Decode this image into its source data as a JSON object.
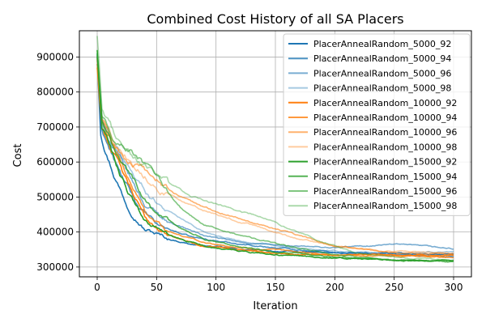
{
  "chart_data": {
    "type": "line",
    "title": "Combined Cost History of all SA Placers",
    "xlabel": "Iteration",
    "ylabel": "Cost",
    "xlim": [
      -15,
      315
    ],
    "ylim": [
      272000,
      975000
    ],
    "xticks": [
      0,
      50,
      100,
      150,
      200,
      250,
      300
    ],
    "yticks": [
      300000,
      400000,
      500000,
      600000,
      700000,
      800000,
      900000
    ],
    "grid": true,
    "legend_position": "top-right",
    "series": [
      {
        "name": "PlacerAnnealRandom_5000_92",
        "color": "#1f77b4",
        "opacity": 1.0,
        "anchors": [
          [
            0,
            900000
          ],
          [
            3,
            690000
          ],
          [
            8,
            630000
          ],
          [
            15,
            560000
          ],
          [
            25,
            480000
          ],
          [
            40,
            410000
          ],
          [
            60,
            380000
          ],
          [
            80,
            365000
          ],
          [
            120,
            350000
          ],
          [
            150,
            345000
          ],
          [
            200,
            340000
          ],
          [
            250,
            338000
          ],
          [
            300,
            336000
          ]
        ]
      },
      {
        "name": "PlacerAnnealRandom_5000_94",
        "color": "#1f77b4",
        "opacity": 0.8,
        "anchors": [
          [
            0,
            910000
          ],
          [
            3,
            700000
          ],
          [
            10,
            640000
          ],
          [
            20,
            560000
          ],
          [
            35,
            470000
          ],
          [
            50,
            420000
          ],
          [
            80,
            385000
          ],
          [
            110,
            370000
          ],
          [
            150,
            355000
          ],
          [
            200,
            343000
          ],
          [
            250,
            335000
          ],
          [
            300,
            330000
          ]
        ]
      },
      {
        "name": "PlacerAnnealRandom_5000_96",
        "color": "#1f77b4",
        "opacity": 0.6,
        "anchors": [
          [
            0,
            880000
          ],
          [
            4,
            710000
          ],
          [
            12,
            650000
          ],
          [
            25,
            570000
          ],
          [
            40,
            480000
          ],
          [
            60,
            430000
          ],
          [
            90,
            390000
          ],
          [
            120,
            370000
          ],
          [
            160,
            360000
          ],
          [
            200,
            355000
          ],
          [
            250,
            365000
          ],
          [
            300,
            352000
          ]
        ]
      },
      {
        "name": "PlacerAnnealRandom_5000_98",
        "color": "#1f77b4",
        "opacity": 0.4,
        "anchors": [
          [
            0,
            890000
          ],
          [
            4,
            720000
          ],
          [
            12,
            660000
          ],
          [
            25,
            590000
          ],
          [
            45,
            500000
          ],
          [
            65,
            450000
          ],
          [
            90,
            400000
          ],
          [
            120,
            375000
          ],
          [
            160,
            355000
          ],
          [
            200,
            345000
          ],
          [
            250,
            340000
          ],
          [
            300,
            345000
          ]
        ]
      },
      {
        "name": "PlacerAnnealRandom_10000_92",
        "color": "#ff7f0e",
        "opacity": 1.0,
        "anchors": [
          [
            0,
            870000
          ],
          [
            4,
            700000
          ],
          [
            12,
            640000
          ],
          [
            25,
            540000
          ],
          [
            40,
            440000
          ],
          [
            60,
            390000
          ],
          [
            90,
            360000
          ],
          [
            120,
            350000
          ],
          [
            150,
            340000
          ],
          [
            200,
            335000
          ],
          [
            250,
            335000
          ],
          [
            300,
            333000
          ]
        ]
      },
      {
        "name": "PlacerAnnealRandom_10000_94",
        "color": "#ff7f0e",
        "opacity": 0.8,
        "anchors": [
          [
            0,
            895000
          ],
          [
            4,
            710000
          ],
          [
            12,
            650000
          ],
          [
            25,
            560000
          ],
          [
            40,
            460000
          ],
          [
            60,
            400000
          ],
          [
            90,
            370000
          ],
          [
            120,
            355000
          ],
          [
            160,
            345000
          ],
          [
            200,
            335000
          ],
          [
            250,
            330000
          ],
          [
            300,
            328000
          ]
        ]
      },
      {
        "name": "PlacerAnnealRandom_10000_96",
        "color": "#ff7f0e",
        "opacity": 0.6,
        "anchors": [
          [
            0,
            880000
          ],
          [
            4,
            720000
          ],
          [
            12,
            660000
          ],
          [
            25,
            600000
          ],
          [
            45,
            560000
          ],
          [
            65,
            510000
          ],
          [
            90,
            470000
          ],
          [
            110,
            450000
          ],
          [
            130,
            430000
          ],
          [
            160,
            400000
          ],
          [
            200,
            360000
          ],
          [
            250,
            340000
          ],
          [
            300,
            335000
          ]
        ]
      },
      {
        "name": "PlacerAnnealRandom_10000_98",
        "color": "#ff7f0e",
        "opacity": 0.4,
        "anchors": [
          [
            0,
            900000
          ],
          [
            4,
            730000
          ],
          [
            15,
            660000
          ],
          [
            30,
            600000
          ],
          [
            50,
            530000
          ],
          [
            75,
            480000
          ],
          [
            100,
            450000
          ],
          [
            130,
            420000
          ],
          [
            160,
            390000
          ],
          [
            200,
            360000
          ],
          [
            250,
            345000
          ],
          [
            300,
            340000
          ]
        ]
      },
      {
        "name": "PlacerAnnealRandom_15000_92",
        "color": "#2ca02c",
        "opacity": 1.0,
        "anchors": [
          [
            0,
            920000
          ],
          [
            4,
            700000
          ],
          [
            12,
            630000
          ],
          [
            25,
            520000
          ],
          [
            40,
            430000
          ],
          [
            60,
            390000
          ],
          [
            90,
            360000
          ],
          [
            120,
            345000
          ],
          [
            150,
            335000
          ],
          [
            200,
            325000
          ],
          [
            250,
            320000
          ],
          [
            300,
            318000
          ]
        ]
      },
      {
        "name": "PlacerAnnealRandom_15000_94",
        "color": "#2ca02c",
        "opacity": 0.8,
        "anchors": [
          [
            0,
            905000
          ],
          [
            4,
            710000
          ],
          [
            12,
            650000
          ],
          [
            25,
            580000
          ],
          [
            45,
            470000
          ],
          [
            65,
            420000
          ],
          [
            90,
            380000
          ],
          [
            120,
            355000
          ],
          [
            160,
            340000
          ],
          [
            200,
            330000
          ],
          [
            250,
            320000
          ],
          [
            300,
            315000
          ]
        ]
      },
      {
        "name": "PlacerAnnealRandom_15000_96",
        "color": "#2ca02c",
        "opacity": 0.6,
        "anchors": [
          [
            0,
            910000
          ],
          [
            4,
            730000
          ],
          [
            12,
            680000
          ],
          [
            25,
            640000
          ],
          [
            35,
            610000
          ],
          [
            50,
            550000
          ],
          [
            70,
            470000
          ],
          [
            90,
            420000
          ],
          [
            120,
            390000
          ],
          [
            160,
            360000
          ],
          [
            200,
            335000
          ],
          [
            250,
            320000
          ],
          [
            300,
            318000
          ]
        ]
      },
      {
        "name": "PlacerAnnealRandom_15000_98",
        "color": "#2ca02c",
        "opacity": 0.4,
        "anchors": [
          [
            0,
            960000
          ],
          [
            4,
            740000
          ],
          [
            15,
            670000
          ],
          [
            30,
            620000
          ],
          [
            50,
            560000
          ],
          [
            80,
            500000
          ],
          [
            100,
            480000
          ],
          [
            120,
            460000
          ],
          [
            140,
            440000
          ],
          [
            160,
            410000
          ],
          [
            190,
            370000
          ],
          [
            220,
            340000
          ],
          [
            260,
            325000
          ],
          [
            300,
            320000
          ]
        ]
      }
    ]
  }
}
